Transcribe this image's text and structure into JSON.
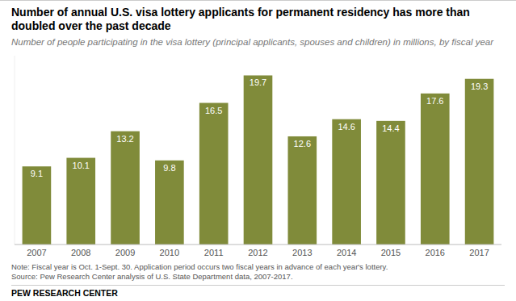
{
  "chart_data": {
    "type": "bar",
    "title": "Number of annual U.S. visa lottery applicants for permanent residency has more than doubled over the past decade",
    "subtitle": "Number of people participating in the visa lottery (principal applicants, spouses and children) in millions, by fiscal year",
    "categories": [
      "2007",
      "2008",
      "2009",
      "2010",
      "2011",
      "2012",
      "2013",
      "2014",
      "2015",
      "2016",
      "2017"
    ],
    "values": [
      9.1,
      10.1,
      13.2,
      9.8,
      16.5,
      19.7,
      12.6,
      14.6,
      14.4,
      17.6,
      19.3
    ],
    "color": "#808b3a",
    "ylim": [
      0,
      22
    ],
    "data_labels": true,
    "tick_labels": "x",
    "grid": false,
    "annotations": [
      "Note: Fiscal year is Oct. 1-Sept. 30. Application period occurs two fiscal years in advance of each year's lottery.",
      "Source: Pew Research Center analysis of U.S. State Department data, 2007-2017.",
      "PEW RESEARCH CENTER"
    ]
  }
}
